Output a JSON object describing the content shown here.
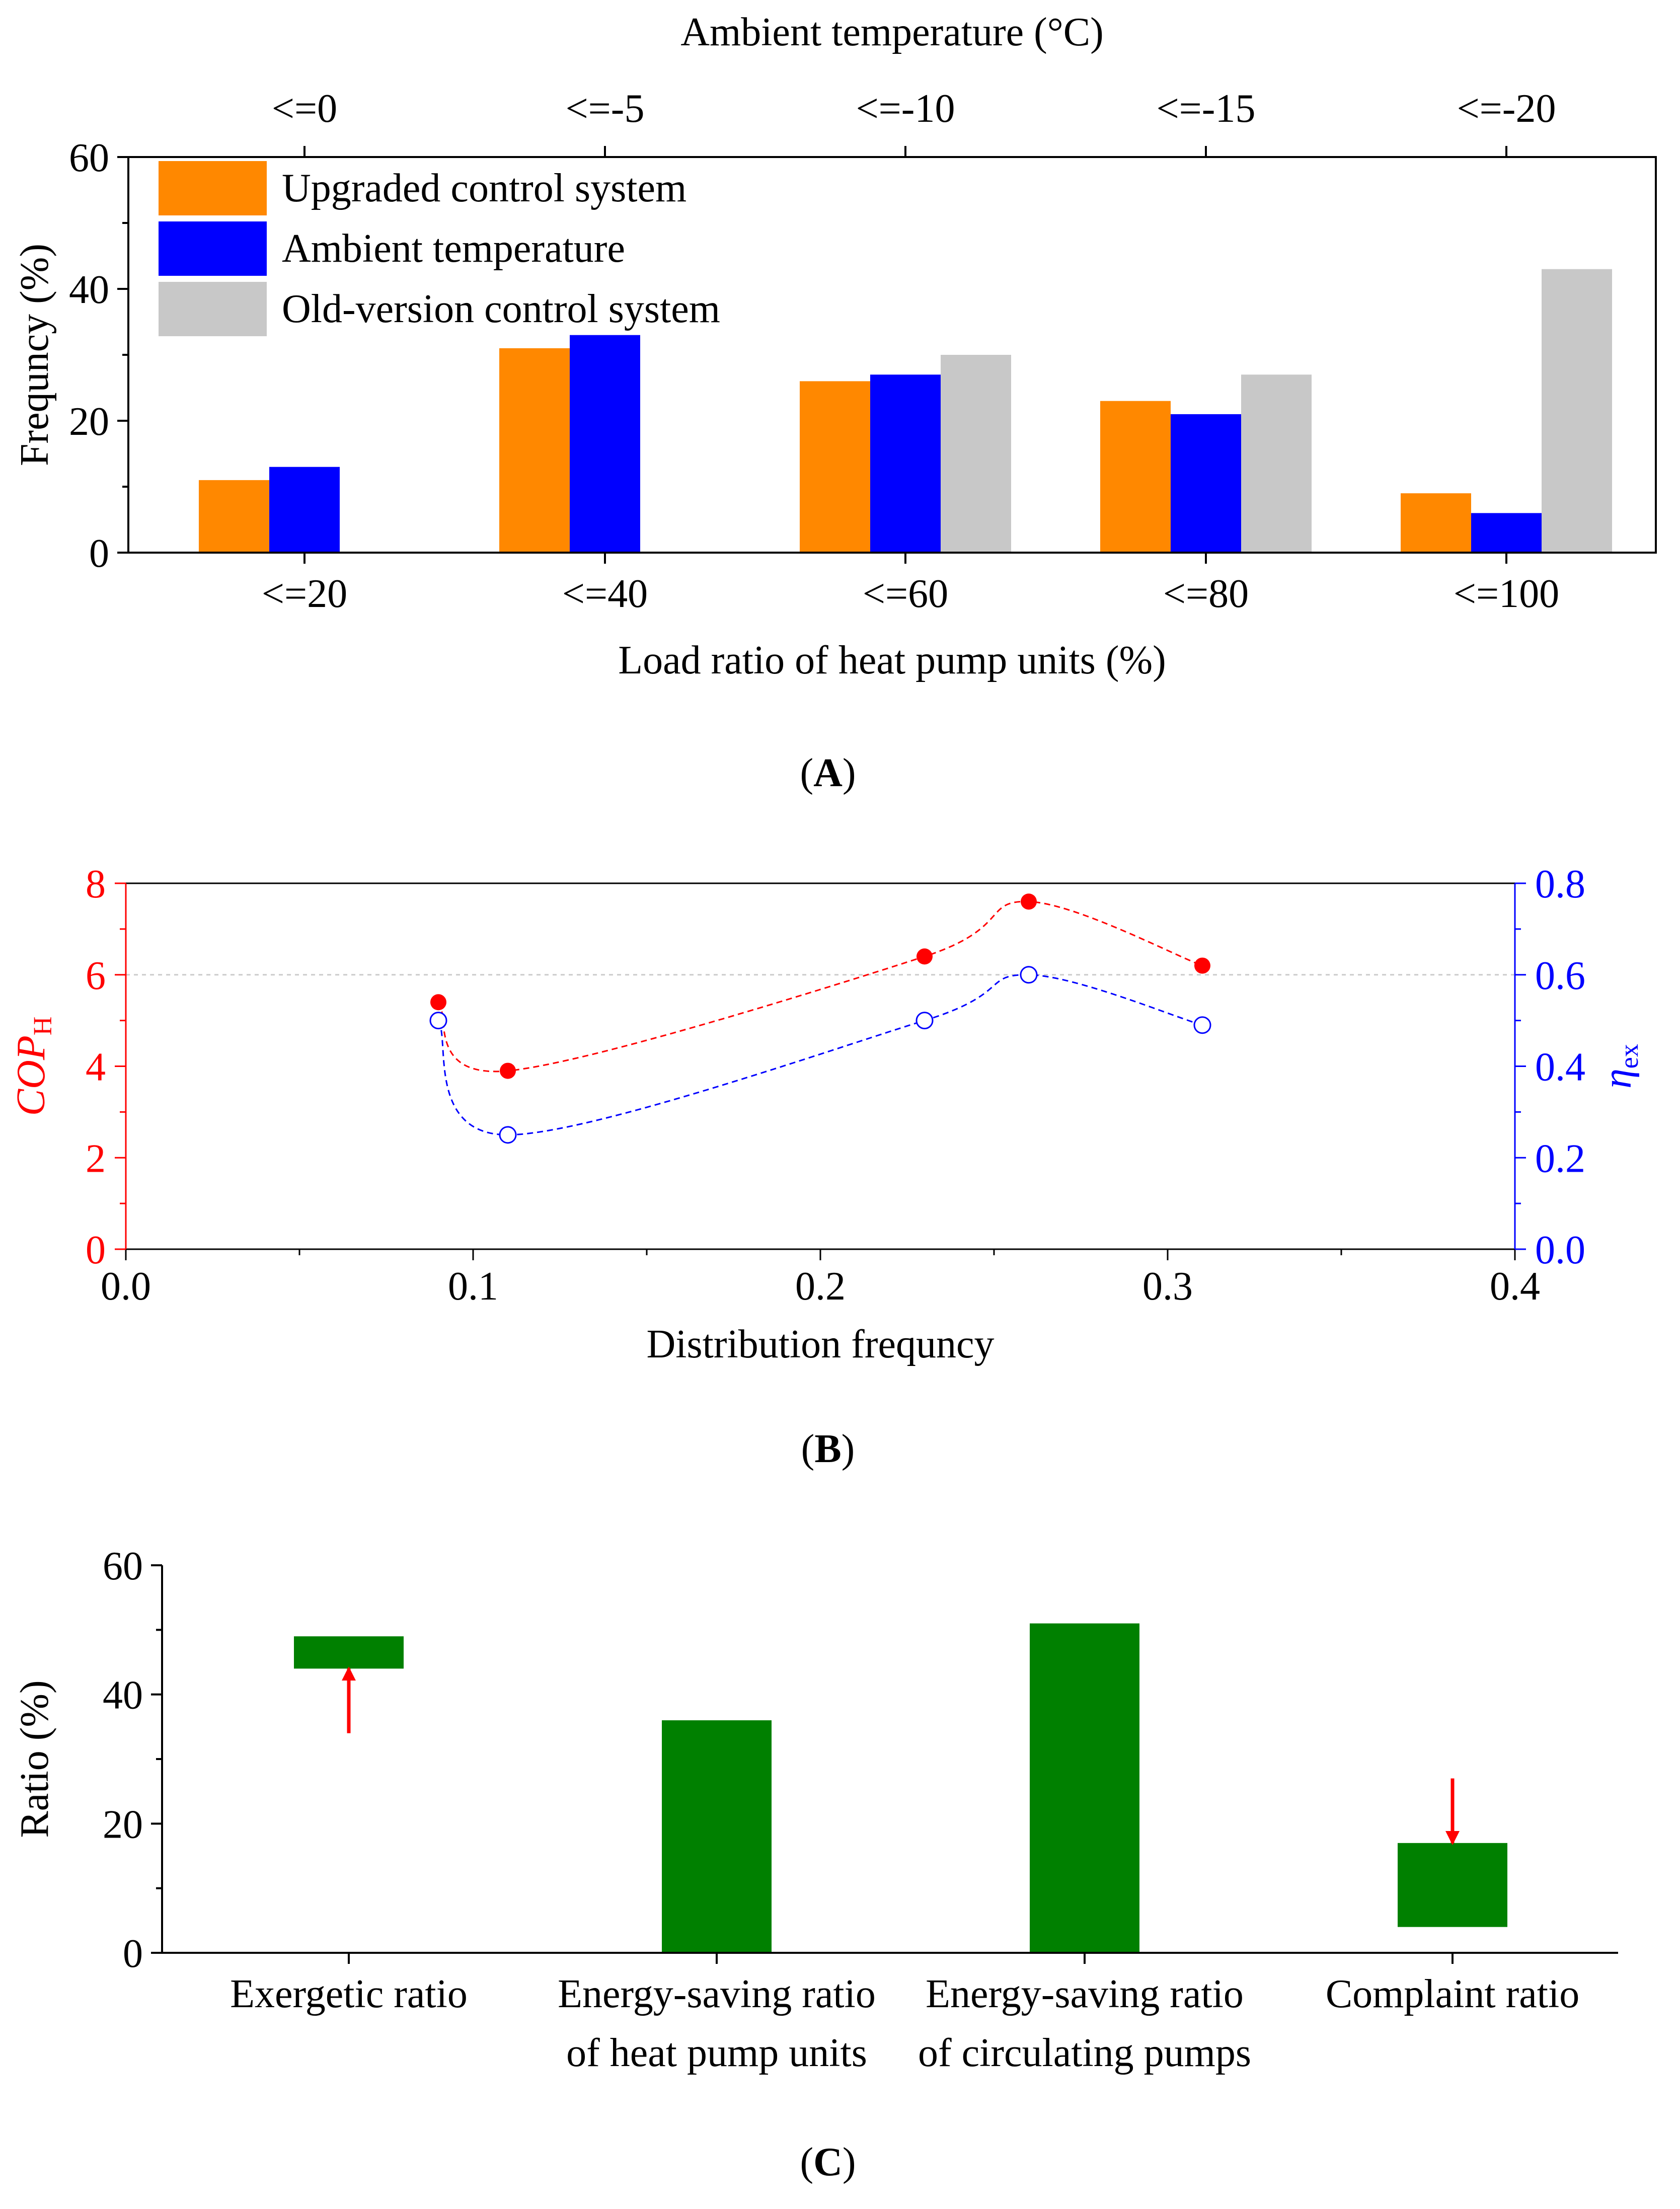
{
  "colors": {
    "orange": "#ff8800",
    "blue": "#0000ff",
    "gray": "#c8c8c8",
    "red": "#ff0000",
    "green": "#008000",
    "axis": "#000000"
  },
  "chart_data": [
    {
      "id": "A",
      "type": "bar",
      "panel_label": "A",
      "xlabel": "Load ratio of heat pump units (%)",
      "ylabel": "Frequncy (%)",
      "top_axis_label": "Ambient temperature (°C)",
      "categories": [
        "<=20",
        "<=40",
        "<=60",
        "<=80",
        "<=100"
      ],
      "top_categories": [
        "<=0",
        "<=-5",
        "<=-10",
        "<=-15",
        "<=-20"
      ],
      "ylim": [
        0,
        60
      ],
      "yticks": [
        "0",
        "20",
        "40",
        "60"
      ],
      "legend_position": "top-left",
      "series": [
        {
          "name": "Upgraded control system",
          "color": "#ff8800",
          "values": [
            11,
            31,
            26,
            23,
            9
          ]
        },
        {
          "name": "Ambient temperature",
          "color": "#0000ff",
          "values": [
            13,
            33,
            27,
            21,
            6
          ]
        },
        {
          "name": "Old-version control system",
          "color": "#c8c8c8",
          "values": [
            0,
            0,
            30,
            27,
            43
          ]
        }
      ]
    },
    {
      "id": "B",
      "type": "line",
      "panel_label": "B",
      "xlabel": "Distribution frequncy",
      "ylabel_left": {
        "main": "COP",
        "sub": "H"
      },
      "ylabel_right": {
        "main": "η",
        "sub": "ex"
      },
      "xlim": [
        0,
        0.4
      ],
      "xticks": [
        "0.0",
        "0.1",
        "0.2",
        "0.3",
        "0.4"
      ],
      "ylim_left": [
        0,
        8
      ],
      "yticks_left": [
        "0",
        "2",
        "4",
        "6",
        "8"
      ],
      "ylim_right": [
        0,
        0.8
      ],
      "yticks_right": [
        "0.0",
        "0.2",
        "0.4",
        "0.6",
        "0.8"
      ],
      "reference_line_left_y": 6,
      "series": [
        {
          "name": "COP_H",
          "axis": "left",
          "color": "#ff0000",
          "marker": "filled-circle",
          "x": [
            0.09,
            0.11,
            0.23,
            0.26,
            0.31
          ],
          "y": [
            5.4,
            3.9,
            6.4,
            7.6,
            6.2
          ]
        },
        {
          "name": "η_ex",
          "axis": "right",
          "color": "#0000ff",
          "marker": "open-circle",
          "x": [
            0.09,
            0.11,
            0.23,
            0.26,
            0.31
          ],
          "y": [
            0.5,
            0.25,
            0.5,
            0.6,
            0.49
          ]
        }
      ]
    },
    {
      "id": "C",
      "type": "bar",
      "panel_label": "C",
      "ylabel": "Ratio (%)",
      "ylim": [
        0,
        60
      ],
      "yticks": [
        "0",
        "20",
        "40",
        "60"
      ],
      "categories": [
        {
          "line1": "Exergetic ratio",
          "line2": ""
        },
        {
          "line1": "Energy-saving ratio",
          "line2": "of heat pump units"
        },
        {
          "line1": "Energy-saving ratio",
          "line2": "of  circulating pumps"
        },
        {
          "line1": "Complaint ratio",
          "line2": ""
        }
      ],
      "bars": [
        {
          "low": 44,
          "high": 49,
          "arrow": "up",
          "arrow_from": 34,
          "arrow_to": 44
        },
        {
          "low": 0,
          "high": 36,
          "arrow": "none"
        },
        {
          "low": 0,
          "high": 51,
          "arrow": "none"
        },
        {
          "low": 4,
          "high": 17,
          "arrow": "down",
          "arrow_from": 27,
          "arrow_to": 17
        }
      ],
      "bar_color": "#008000",
      "arrow_color": "#ff0000"
    }
  ]
}
